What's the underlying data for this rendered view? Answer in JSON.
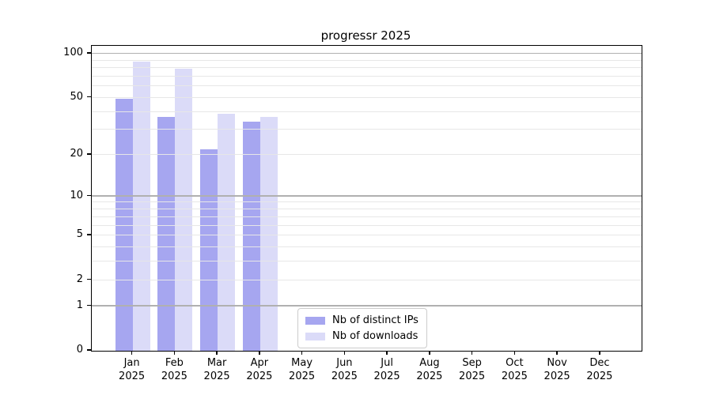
{
  "figure": {
    "title": "progressr 2025"
  },
  "colors": {
    "bar_distinct_ips": "#a6a6f0",
    "bar_downloads": "#dbdbf8",
    "grid_major": "#b0b0b0",
    "grid_minor": "#e7e7e7",
    "spine": "#000000",
    "legend_border": "#cccccc",
    "text": "#000000"
  },
  "chart_data": {
    "type": "bar",
    "title": "progressr 2025",
    "categories": [
      "Jan",
      "Feb",
      "Mar",
      "Apr",
      "May",
      "Jun",
      "Jul",
      "Aug",
      "Sep",
      "Oct",
      "Nov",
      "Dec"
    ],
    "year_label": "2025",
    "series": [
      {
        "name": "Nb of distinct IPs",
        "color": "#a6a6f0",
        "values": [
          49,
          37,
          22,
          34,
          0,
          0,
          0,
          0,
          0,
          0,
          0,
          0
        ]
      },
      {
        "name": "Nb of downloads",
        "color": "#dbdbf8",
        "values": [
          88,
          79,
          39,
          37,
          0,
          0,
          0,
          0,
          0,
          0,
          0,
          0
        ]
      }
    ],
    "y_axis": {
      "scale": "log1p",
      "tick_values": [
        0,
        1,
        2,
        5,
        10,
        20,
        50,
        100
      ],
      "major_gridlines": [
        1,
        10,
        100
      ],
      "minor_gridlines": [
        2,
        3,
        4,
        5,
        6,
        7,
        8,
        9,
        20,
        30,
        40,
        50,
        60,
        70,
        80,
        90
      ],
      "ylim": [
        0,
        115
      ]
    },
    "x_axis": {
      "tick_labels": [
        "Jan 2025",
        "Feb 2025",
        "Mar 2025",
        "Apr 2025",
        "May 2025",
        "Jun 2025",
        "Jul 2025",
        "Aug 2025",
        "Sep 2025",
        "Oct 2025",
        "Nov 2025",
        "Dec 2025"
      ]
    },
    "legend": {
      "position": "lower center",
      "entries": [
        "Nb of distinct IPs",
        "Nb of downloads"
      ]
    },
    "grid": true
  }
}
